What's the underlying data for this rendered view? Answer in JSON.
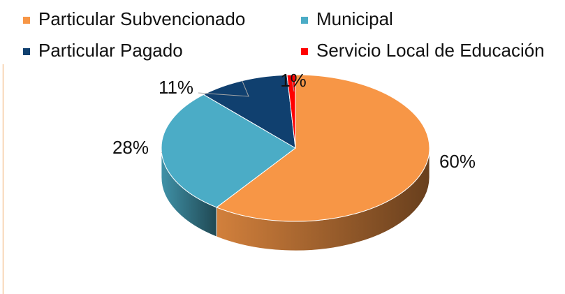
{
  "chart_data": {
    "type": "pie3d",
    "categories": [
      "Particular Subvencionado",
      "Municipal",
      "Particular Pagado",
      "Servicio Local de Educación"
    ],
    "values": [
      60,
      28,
      11,
      1
    ],
    "value_labels": [
      "60%",
      "28%",
      "11%",
      "1%"
    ],
    "colors": [
      "#f79646",
      "#4bacc6",
      "#10406f",
      "#ff0000"
    ],
    "legend": "top"
  }
}
